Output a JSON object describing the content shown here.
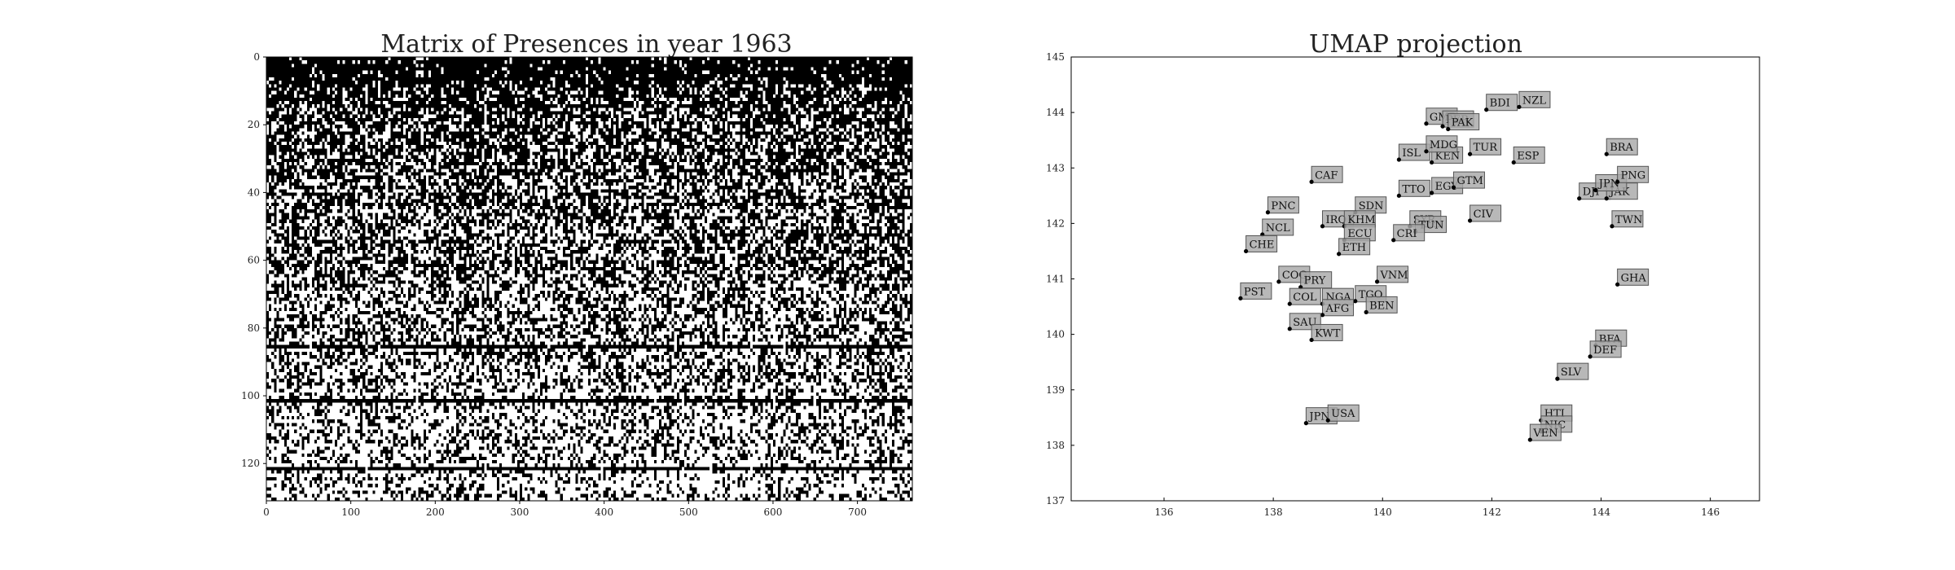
{
  "chart_data": [
    {
      "type": "heatmap",
      "title": "Matrix of Presences in year 1963",
      "xlim": [
        0,
        765
      ],
      "ylim": [
        0,
        131
      ],
      "x_ticks": [
        0,
        100,
        200,
        300,
        400,
        500,
        600,
        700
      ],
      "y_ticks": [
        0,
        20,
        40,
        60,
        80,
        100,
        120
      ],
      "colors": {
        "present": "#000000",
        "absent": "#ffffff"
      },
      "full_black_rows": [
        85,
        101,
        121
      ],
      "note_density_profile": [
        [
          0,
          0.95
        ],
        [
          6,
          0.82
        ],
        [
          12,
          0.75
        ],
        [
          20,
          0.66
        ],
        [
          40,
          0.58
        ],
        [
          60,
          0.52
        ],
        [
          80,
          0.45
        ],
        [
          100,
          0.36
        ],
        [
          131,
          0.3
        ]
      ]
    },
    {
      "type": "scatter",
      "title": "UMAP projection",
      "xlim": [
        134.3,
        146.9
      ],
      "ylim": [
        137.0,
        145.0
      ],
      "x_ticks": [
        136,
        138,
        140,
        142,
        144,
        146
      ],
      "y_ticks": [
        137,
        138,
        139,
        140,
        141,
        142,
        143,
        144,
        145
      ],
      "label_box_color": "#a8a8a8",
      "points": [
        {
          "label": "GMB",
          "x": 140.8,
          "y": 143.8
        },
        {
          "label": "PER",
          "x": 141.1,
          "y": 143.75
        },
        {
          "label": "PAK",
          "x": 141.2,
          "y": 143.7
        },
        {
          "label": "BDI",
          "x": 141.9,
          "y": 144.05
        },
        {
          "label": "NZL",
          "x": 142.5,
          "y": 144.1
        },
        {
          "label": "BRA",
          "x": 144.1,
          "y": 143.25
        },
        {
          "label": "TUR",
          "x": 141.6,
          "y": 143.25
        },
        {
          "label": "ESP",
          "x": 142.4,
          "y": 143.1
        },
        {
          "label": "ISL",
          "x": 140.3,
          "y": 143.15
        },
        {
          "label": "KEN",
          "x": 140.9,
          "y": 143.1
        },
        {
          "label": "MDG",
          "x": 140.8,
          "y": 143.3
        },
        {
          "label": "TTO",
          "x": 140.3,
          "y": 142.5
        },
        {
          "label": "EGY",
          "x": 140.9,
          "y": 142.55
        },
        {
          "label": "GTM",
          "x": 141.3,
          "y": 142.65
        },
        {
          "label": "CIV",
          "x": 141.6,
          "y": 142.05
        },
        {
          "label": "SYR",
          "x": 140.5,
          "y": 141.95
        },
        {
          "label": "TUN",
          "x": 140.6,
          "y": 141.85
        },
        {
          "label": "CRI",
          "x": 140.2,
          "y": 141.7
        },
        {
          "label": "DJI",
          "x": 143.6,
          "y": 142.45
        },
        {
          "label": "JAK",
          "x": 144.1,
          "y": 142.45
        },
        {
          "label": "JPN",
          "x": 143.9,
          "y": 142.6
        },
        {
          "label": "PNG",
          "x": 144.3,
          "y": 142.75
        },
        {
          "label": "TWN",
          "x": 144.2,
          "y": 141.95
        },
        {
          "label": "GHA",
          "x": 144.3,
          "y": 140.9
        },
        {
          "label": "CAF",
          "x": 138.7,
          "y": 142.75
        },
        {
          "label": "SDN",
          "x": 139.5,
          "y": 142.2
        },
        {
          "label": "PNC",
          "x": 137.9,
          "y": 142.2
        },
        {
          "label": "IRQ",
          "x": 138.9,
          "y": 141.95
        },
        {
          "label": "KHM",
          "x": 139.3,
          "y": 141.95
        },
        {
          "label": "NCL",
          "x": 137.8,
          "y": 141.8
        },
        {
          "label": "ECU",
          "x": 139.3,
          "y": 141.7
        },
        {
          "label": "ETH",
          "x": 139.2,
          "y": 141.45
        },
        {
          "label": "CHE",
          "x": 137.5,
          "y": 141.5
        },
        {
          "label": "COG",
          "x": 138.1,
          "y": 140.95
        },
        {
          "label": "PRY",
          "x": 138.5,
          "y": 140.85
        },
        {
          "label": "VNM",
          "x": 139.9,
          "y": 140.95
        },
        {
          "label": "COL",
          "x": 138.3,
          "y": 140.55
        },
        {
          "label": "NGA",
          "x": 138.9,
          "y": 140.55
        },
        {
          "label": "TGO",
          "x": 139.5,
          "y": 140.6
        },
        {
          "label": "AFG",
          "x": 138.9,
          "y": 140.35
        },
        {
          "label": "BEN",
          "x": 139.7,
          "y": 140.4
        },
        {
          "label": "PST",
          "x": 137.4,
          "y": 140.65
        },
        {
          "label": "SAU",
          "x": 138.3,
          "y": 140.1
        },
        {
          "label": "KWT",
          "x": 138.7,
          "y": 139.9
        },
        {
          "label": "JPN",
          "x": 138.6,
          "y": 138.4
        },
        {
          "label": "USA",
          "x": 139.0,
          "y": 138.45
        },
        {
          "label": "BFA",
          "x": 143.9,
          "y": 139.8
        },
        {
          "label": "DEF",
          "x": 143.8,
          "y": 139.6
        },
        {
          "label": "SLV",
          "x": 143.2,
          "y": 139.2
        },
        {
          "label": "HTI",
          "x": 142.9,
          "y": 138.45
        },
        {
          "label": "NIC",
          "x": 142.9,
          "y": 138.25
        },
        {
          "label": "VEN",
          "x": 142.7,
          "y": 138.1
        }
      ]
    }
  ]
}
